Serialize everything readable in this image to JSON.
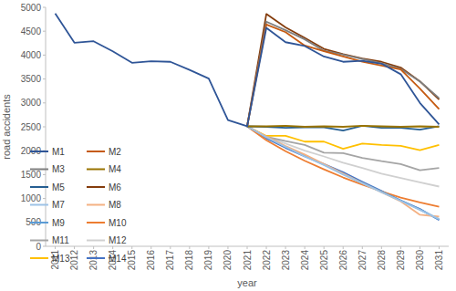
{
  "chart_data": {
    "type": "line",
    "x_label": "year",
    "y_label": "road accidents",
    "categories": [
      "2011",
      "2012",
      "2013",
      "2014",
      "2015",
      "2016",
      "2017",
      "2018",
      "2019",
      "2020",
      "2021",
      "2022",
      "2023",
      "2024",
      "2025",
      "2026",
      "2027",
      "2028",
      "2029",
      "2030",
      "2031"
    ],
    "ylim": [
      0,
      5000
    ],
    "yticks": [
      0,
      500,
      1000,
      1500,
      2000,
      2500,
      3000,
      3500,
      4000,
      4500,
      5000
    ],
    "grid": false,
    "legend": "lower left",
    "series": [
      {
        "name": "M1",
        "color": "#2f5597",
        "values": [
          4870,
          4260,
          4290,
          4080,
          3840,
          3870,
          3860,
          3690,
          3510,
          2640,
          2510,
          4570,
          4270,
          4190,
          3970,
          3860,
          3880,
          3820,
          3600,
          3000,
          2550
        ]
      },
      {
        "name": "M2",
        "color": "#c55a11",
        "values": [
          null,
          null,
          null,
          null,
          null,
          null,
          null,
          null,
          null,
          null,
          2510,
          4640,
          4480,
          4200,
          4080,
          3970,
          3860,
          3780,
          3700,
          3300,
          2870
        ]
      },
      {
        "name": "M3",
        "color": "#7f7f7f",
        "values": [
          null,
          null,
          null,
          null,
          null,
          null,
          null,
          null,
          null,
          null,
          2510,
          4700,
          4520,
          4330,
          4090,
          4010,
          3920,
          3830,
          3710,
          3450,
          3100
        ]
      },
      {
        "name": "M4",
        "color": "#997300",
        "values": [
          null,
          null,
          null,
          null,
          null,
          null,
          null,
          null,
          null,
          null,
          2510,
          2510,
          2520,
          2500,
          2510,
          2500,
          2520,
          2510,
          2500,
          2510,
          2500
        ]
      },
      {
        "name": "M5",
        "color": "#255e91",
        "values": [
          null,
          null,
          null,
          null,
          null,
          null,
          null,
          null,
          null,
          null,
          2510,
          2500,
          2480,
          2490,
          2490,
          2420,
          2520,
          2480,
          2480,
          2440,
          2510
        ]
      },
      {
        "name": "M6",
        "color": "#843c0c",
        "values": [
          null,
          null,
          null,
          null,
          null,
          null,
          null,
          null,
          null,
          null,
          2510,
          4860,
          4580,
          4360,
          4130,
          4020,
          3930,
          3860,
          3740,
          3450,
          3070
        ]
      },
      {
        "name": "M7",
        "color": "#9dc3e6",
        "values": [
          null,
          null,
          null,
          null,
          null,
          null,
          null,
          null,
          null,
          null,
          2510,
          2280,
          2080,
          1880,
          1700,
          1500,
          1320,
          1130,
          950,
          760,
          570
        ]
      },
      {
        "name": "M8",
        "color": "#f4b183",
        "values": [
          null,
          null,
          null,
          null,
          null,
          null,
          null,
          null,
          null,
          null,
          2510,
          2300,
          2100,
          1920,
          1720,
          1520,
          1320,
          1130,
          940,
          660,
          620
        ]
      },
      {
        "name": "M9",
        "color": "#5b9bd5",
        "values": [
          null,
          null,
          null,
          null,
          null,
          null,
          null,
          null,
          null,
          null,
          2510,
          2290,
          2080,
          1900,
          1710,
          1520,
          1330,
          1150,
          960,
          770,
          560
        ]
      },
      {
        "name": "M10",
        "color": "#ed7d31",
        "values": [
          null,
          null,
          null,
          null,
          null,
          null,
          null,
          null,
          null,
          null,
          2510,
          2220,
          1990,
          1790,
          1610,
          1440,
          1290,
          1150,
          1020,
          920,
          830
        ]
      },
      {
        "name": "M11",
        "color": "#a5a5a5",
        "values": [
          null,
          null,
          null,
          null,
          null,
          null,
          null,
          null,
          null,
          null,
          2510,
          2290,
          2200,
          2120,
          1960,
          1950,
          1850,
          1780,
          1720,
          1590,
          1640
        ]
      },
      {
        "name": "M12",
        "color": "#d0d0d0",
        "values": [
          null,
          null,
          null,
          null,
          null,
          null,
          null,
          null,
          null,
          null,
          2510,
          2290,
          2150,
          2000,
          1880,
          1750,
          1640,
          1520,
          1430,
          1340,
          1250
        ]
      },
      {
        "name": "M13",
        "color": "#ffc000",
        "values": [
          null,
          null,
          null,
          null,
          null,
          null,
          null,
          null,
          null,
          null,
          2510,
          2310,
          2310,
          2190,
          2190,
          2040,
          2150,
          2120,
          2100,
          2010,
          2120
        ]
      },
      {
        "name": "M14",
        "color": "#4472c4",
        "values": [
          null,
          null,
          null,
          null,
          null,
          null,
          null,
          null,
          null,
          null,
          2510,
          2260,
          2060,
          1880,
          1720,
          1550,
          1350,
          1160,
          960,
          780,
          550
        ]
      }
    ]
  }
}
